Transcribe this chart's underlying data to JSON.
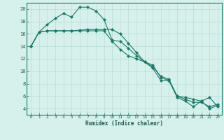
{
  "title": "",
  "xlabel": "Humidex (Indice chaleur)",
  "ylabel": "",
  "bg_color": "#d6f0ec",
  "grid_color": "#b8ddd8",
  "line_color": "#1a7a6a",
  "marker_color": "#1a7a6a",
  "xlim": [
    -0.5,
    23.5
  ],
  "ylim": [
    3,
    21
  ],
  "yticks": [
    4,
    6,
    8,
    10,
    12,
    14,
    16,
    18,
    20
  ],
  "xticks": [
    0,
    1,
    2,
    3,
    4,
    5,
    6,
    7,
    8,
    9,
    10,
    11,
    12,
    13,
    14,
    15,
    16,
    17,
    18,
    19,
    20,
    21,
    22,
    23
  ],
  "line1_x": [
    0,
    1,
    2,
    3,
    4,
    5,
    6,
    7,
    8,
    9,
    10,
    11,
    12,
    13,
    14,
    15,
    16,
    17,
    18,
    19,
    20,
    21,
    22,
    23
  ],
  "line1_y": [
    14,
    16.3,
    17.5,
    18.5,
    19.3,
    18.7,
    20.3,
    20.3,
    19.7,
    18.3,
    15.0,
    14.8,
    13.7,
    12.5,
    11.5,
    11.0,
    9.0,
    8.5,
    6.0,
    5.8,
    5.5,
    5.2,
    4.0,
    4.5
  ],
  "line2_x": [
    0,
    1,
    2,
    3,
    4,
    5,
    6,
    7,
    8,
    9,
    10,
    11,
    12,
    13,
    14,
    15,
    16,
    17,
    18,
    19,
    20,
    21,
    22,
    23
  ],
  "line2_y": [
    14,
    16.3,
    16.5,
    16.5,
    16.5,
    16.5,
    16.6,
    16.7,
    16.7,
    16.7,
    16.7,
    16.0,
    14.5,
    13.0,
    11.5,
    10.7,
    9.2,
    8.7,
    6.0,
    5.5,
    5.0,
    5.0,
    4.3,
    4.7
  ],
  "line3_x": [
    0,
    1,
    2,
    3,
    4,
    5,
    6,
    7,
    8,
    9,
    10,
    11,
    12,
    13,
    14,
    15,
    16,
    17,
    18,
    19,
    20,
    21,
    22,
    23
  ],
  "line3_y": [
    14,
    16.3,
    16.5,
    16.5,
    16.5,
    16.5,
    16.5,
    16.5,
    16.5,
    16.5,
    14.8,
    13.5,
    12.5,
    12.0,
    11.5,
    10.5,
    8.5,
    8.5,
    5.8,
    5.2,
    4.3,
    5.2,
    5.8,
    4.3
  ]
}
